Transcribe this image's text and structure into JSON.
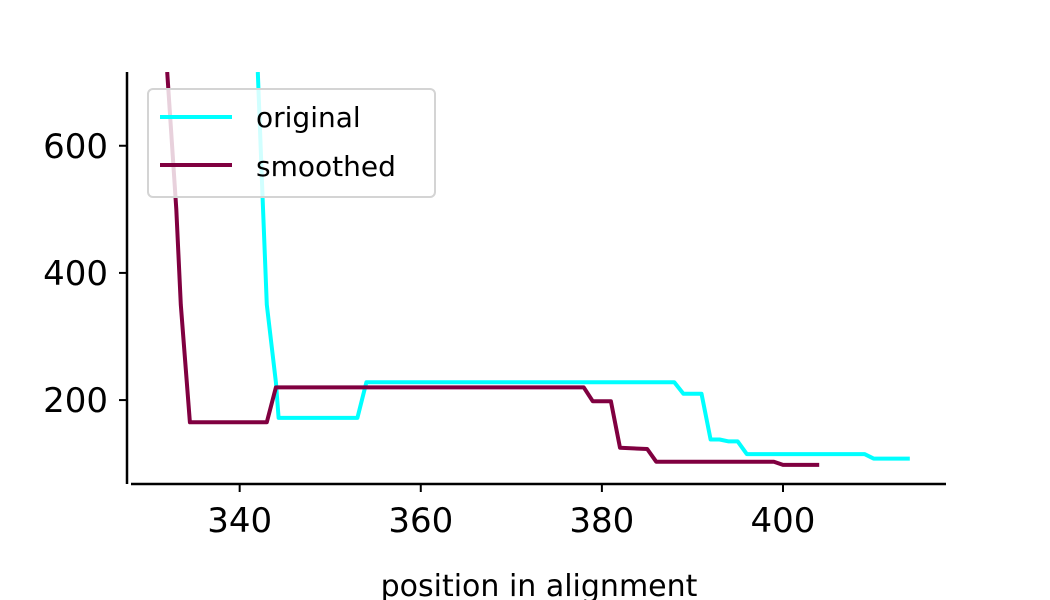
{
  "chart_data": {
    "type": "line",
    "title": "",
    "xlabel": "position in alignment",
    "ylabel": "",
    "xlim": [
      328,
      418
    ],
    "ylim": [
      68,
      716
    ],
    "x_ticks": [
      340,
      360,
      380,
      400
    ],
    "y_ticks": [
      200,
      400,
      600
    ],
    "grid": false,
    "legend_position": "top-left",
    "series": [
      {
        "name": "original",
        "color": "#00ffff",
        "points": [
          [
            342,
            716
          ],
          [
            342.5,
            530
          ],
          [
            343,
            350
          ],
          [
            344,
            228
          ],
          [
            344.3,
            172
          ],
          [
            353,
            172
          ],
          [
            354,
            228
          ],
          [
            388,
            228
          ],
          [
            389,
            210
          ],
          [
            391,
            210
          ],
          [
            392,
            138
          ],
          [
            393,
            138
          ],
          [
            394,
            135
          ],
          [
            395,
            135
          ],
          [
            396,
            115
          ],
          [
            409,
            115
          ],
          [
            410,
            108
          ],
          [
            414,
            108
          ]
        ]
      },
      {
        "name": "smoothed",
        "color": "#800040",
        "points": [
          [
            332,
            716
          ],
          [
            333,
            500
          ],
          [
            333.5,
            350
          ],
          [
            334.5,
            165
          ],
          [
            343,
            165
          ],
          [
            344,
            220
          ],
          [
            378,
            220
          ],
          [
            379,
            198
          ],
          [
            381,
            198
          ],
          [
            382,
            125
          ],
          [
            385,
            123
          ],
          [
            386,
            103
          ],
          [
            399,
            103
          ],
          [
            400,
            98
          ],
          [
            404,
            98
          ]
        ]
      }
    ]
  }
}
